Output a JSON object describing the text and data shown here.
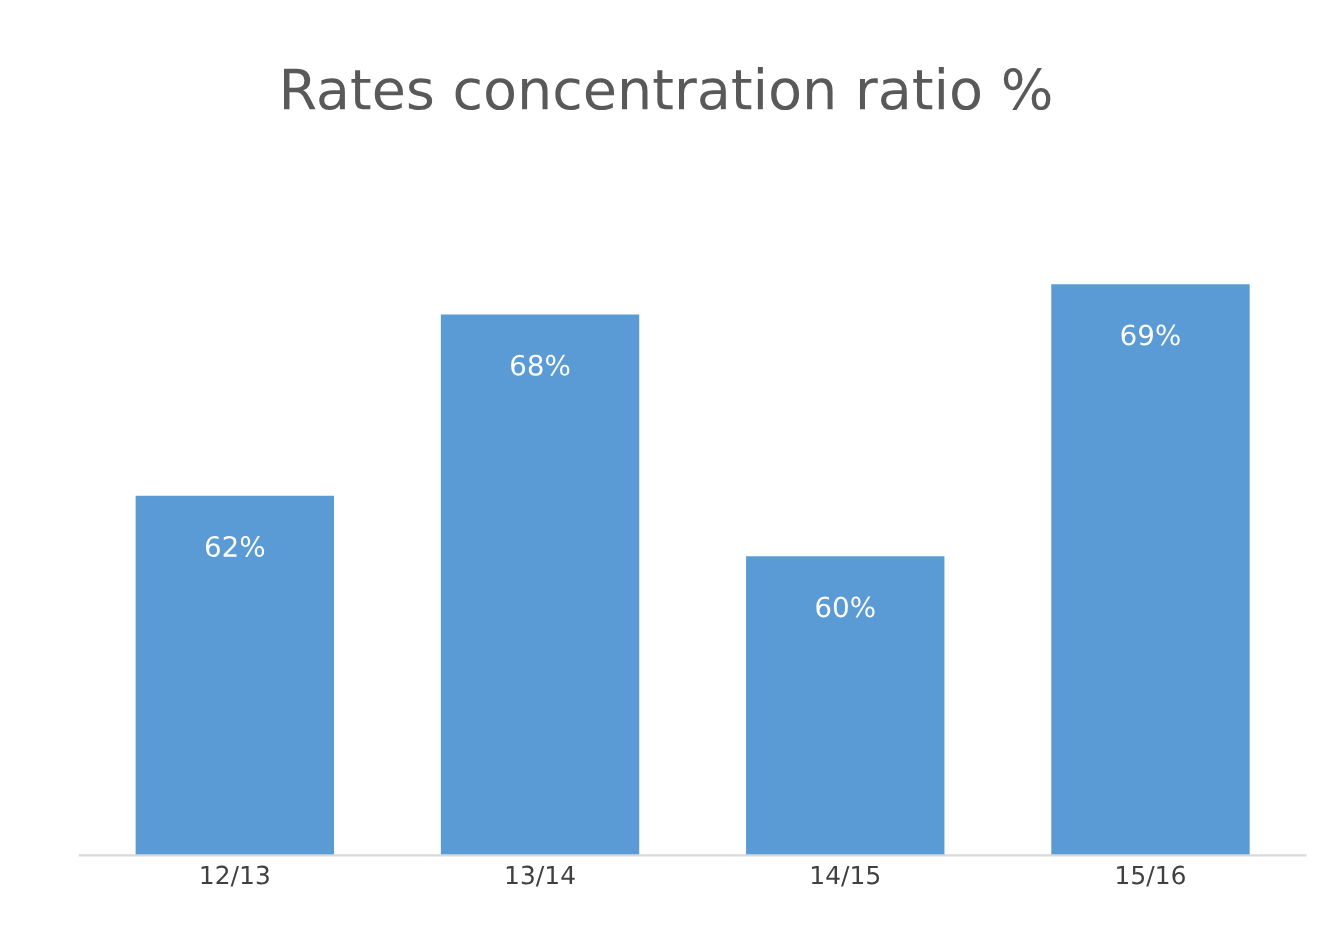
{
  "chart_data": {
    "type": "bar",
    "title": "Rates concentration ratio %",
    "categories": [
      "12/13",
      "13/14",
      "14/15",
      "15/16"
    ],
    "values": [
      62,
      68,
      60,
      69
    ],
    "value_labels": [
      "62%",
      "68%",
      "60%",
      "69%"
    ],
    "color": "#5b9bd5",
    "tick_labels": "x",
    "grid": false,
    "legend": false
  }
}
